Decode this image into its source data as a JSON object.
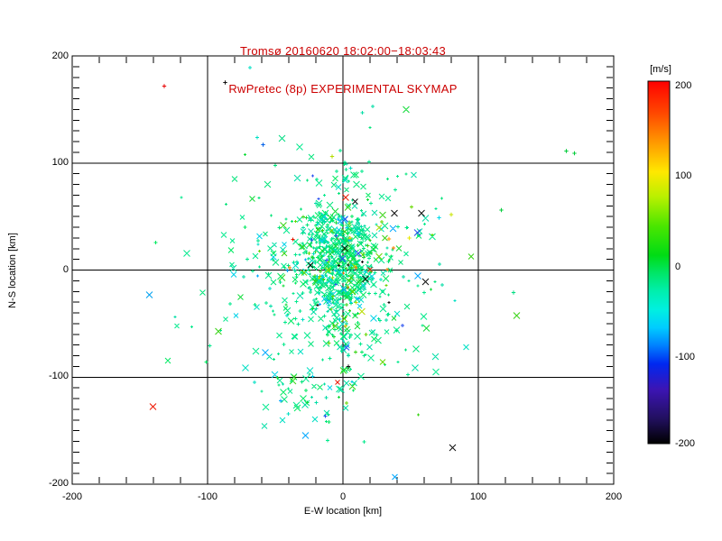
{
  "header": {
    "title_line1": "Tromsø 20160620 18:02:00−18:03:43",
    "title_line2": "RwPretec (8p) EXPERIMENTAL SKYMAP",
    "title_color": "#cc0000"
  },
  "chart_data": {
    "type": "scatter",
    "title": "Tromsø 20160620 18:02:00−18:03:43",
    "subtitle": "RwPretec (8p) EXPERIMENTAL SKYMAP",
    "xlabel": "E-W location [km]",
    "ylabel": "N-S location [km]",
    "xlim": [
      -200,
      200
    ],
    "ylim": [
      -200,
      200
    ],
    "xticks": [
      "-200",
      "-100",
      "0",
      "100",
      "200"
    ],
    "yticks": [
      "200",
      "100",
      "0",
      "-100",
      "-200"
    ],
    "x_minor_step_km": 20,
    "y_minor_step_km": 10,
    "grid_lines_km": [
      -100,
      0,
      100
    ],
    "grid": true,
    "colorbar": {
      "label": "[m/s]",
      "ticks": [
        "200",
        "100",
        "0",
        "-100",
        "-200"
      ],
      "min": -200,
      "max": 200,
      "colormap": "rainbow",
      "stops": [
        [
          "0%",
          "#ff0000"
        ],
        [
          "9%",
          "#ff4a00"
        ],
        [
          "17%",
          "#ff9a00"
        ],
        [
          "25%",
          "#ffe800"
        ],
        [
          "32%",
          "#b8f000"
        ],
        [
          "40%",
          "#4ae600"
        ],
        [
          "48%",
          "#00dc14"
        ],
        [
          "53%",
          "#00e668"
        ],
        [
          "58%",
          "#00efae"
        ],
        [
          "63%",
          "#00f0e0"
        ],
        [
          "68%",
          "#00ccff"
        ],
        [
          "73%",
          "#0080ff"
        ],
        [
          "78%",
          "#0028f0"
        ],
        [
          "85%",
          "#3c14b4"
        ],
        [
          "93%",
          "#221060"
        ],
        [
          "100%",
          "#000000"
        ]
      ]
    },
    "marker_palette": [
      {
        "color": "#00e98c",
        "weight": 30
      },
      {
        "color": "#00e47a",
        "weight": 16
      },
      {
        "color": "#00dea6",
        "weight": 10
      },
      {
        "color": "#00ea62",
        "weight": 9
      },
      {
        "color": "#12dc3a",
        "weight": 6
      },
      {
        "color": "#00e0c4",
        "weight": 5
      },
      {
        "color": "#00d2e8",
        "weight": 3.5
      },
      {
        "color": "#38d414",
        "weight": 3
      },
      {
        "color": "#67d800",
        "weight": 1.6
      },
      {
        "color": "#00a8ff",
        "weight": 1.2
      },
      {
        "color": "#2a52f0",
        "weight": 0.8
      },
      {
        "color": "#b8dc00",
        "weight": 0.7
      },
      {
        "color": "#f0c400",
        "weight": 0.45
      },
      {
        "color": "#ff7a00",
        "weight": 0.35
      },
      {
        "color": "#ee1600",
        "weight": 0.35
      },
      {
        "color": "#101010",
        "weight": 0.55
      }
    ],
    "clusters": [
      {
        "n": 500,
        "cx": -4,
        "cy": 10,
        "sx": 15,
        "sy": 25
      },
      {
        "n": 280,
        "cx": -6,
        "cy": 2,
        "sx": 32,
        "sy": 46
      },
      {
        "n": 160,
        "cx": -12,
        "cy": -8,
        "sx": 55,
        "sy": 72
      },
      {
        "n": 38,
        "cx": -26,
        "cy": -116,
        "sx": 15,
        "sy": 12
      },
      {
        "n": 22,
        "cx": 1,
        "cy": -62,
        "sx": 2,
        "sy": 24
      },
      {
        "n": 9,
        "cx": 1,
        "cy": 93,
        "sx": 1.5,
        "sy": 7
      }
    ],
    "outlier_points": [
      {
        "x": -132,
        "y": 172,
        "color": "#e80000",
        "marker": "plus"
      },
      {
        "x": -87,
        "y": 175,
        "color": "#101010",
        "marker": "plus"
      },
      {
        "x": -143,
        "y": -23,
        "color": "#00a0f0",
        "marker": "x"
      },
      {
        "x": 81,
        "y": -166,
        "color": "#101010",
        "marker": "x"
      },
      {
        "x": 2,
        "y": 68,
        "color": "#e82000",
        "marker": "x"
      },
      {
        "x": 38,
        "y": 53,
        "color": "#101010",
        "marker": "x"
      },
      {
        "x": 58,
        "y": 53,
        "color": "#101010",
        "marker": "x"
      },
      {
        "x": 55,
        "y": 35,
        "color": "#2b50f0",
        "marker": "x"
      },
      {
        "x": 80,
        "y": 52,
        "color": "#c8e600",
        "marker": "plus"
      },
      {
        "x": 71,
        "y": 49,
        "color": "#00d8e8",
        "marker": "plus"
      },
      {
        "x": 49,
        "y": 30,
        "color": "#e8e800",
        "marker": "plus"
      },
      {
        "x": 34,
        "y": 29,
        "color": "#ff9a00",
        "marker": "plus"
      },
      {
        "x": 165,
        "y": 111,
        "color": "#00cc3a",
        "marker": "plus"
      },
      {
        "x": 171,
        "y": 109,
        "color": "#00cc3a",
        "marker": "plus"
      },
      {
        "x": -59,
        "y": 117,
        "color": "#0060e8",
        "marker": "plus"
      },
      {
        "x": -8,
        "y": 106,
        "color": "#b4dc00",
        "marker": "plus"
      },
      {
        "x": 4,
        "y": -90,
        "color": "#101010",
        "marker": "plus"
      },
      {
        "x": -45,
        "y": 123,
        "color": "#00dc82",
        "marker": "x"
      },
      {
        "x": 126,
        "y": -21,
        "color": "#00dc82",
        "marker": "plus"
      },
      {
        "x": 117,
        "y": 56,
        "color": "#00cc3a",
        "marker": "plus"
      }
    ],
    "seed": 20160620
  }
}
